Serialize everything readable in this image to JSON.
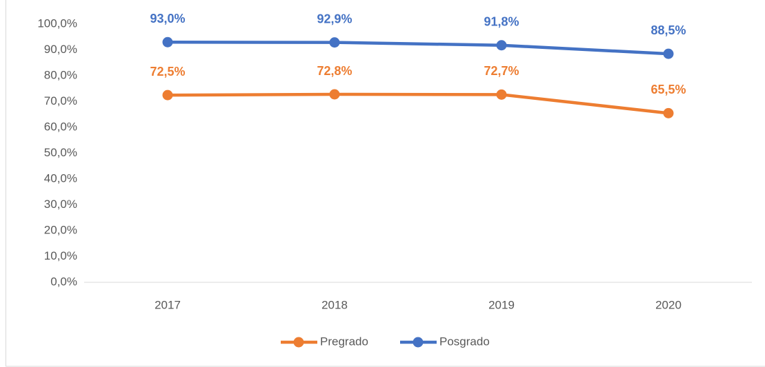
{
  "chart_data": {
    "type": "line",
    "categories": [
      "2017",
      "2018",
      "2019",
      "2020"
    ],
    "series": [
      {
        "name": "Pregrado",
        "color": "#ed7d31",
        "values": [
          72.5,
          72.8,
          72.7,
          65.5
        ],
        "value_labels": [
          "72,5%",
          "72,8%",
          "72,7%",
          "65,5%"
        ]
      },
      {
        "name": "Posgrado",
        "color": "#4472c4",
        "values": [
          93.0,
          92.9,
          91.8,
          88.5
        ],
        "value_labels": [
          "93,0%",
          "92,9%",
          "91,8%",
          "88,5%"
        ]
      }
    ],
    "ylim": [
      0,
      100
    ],
    "yticks": [
      {
        "value": 0,
        "label": "0,0%"
      },
      {
        "value": 10,
        "label": "10,0%"
      },
      {
        "value": 20,
        "label": "20,0%"
      },
      {
        "value": 30,
        "label": "30,0%"
      },
      {
        "value": 40,
        "label": "40,0%"
      },
      {
        "value": 50,
        "label": "50,0%"
      },
      {
        "value": 60,
        "label": "60,0%"
      },
      {
        "value": 70,
        "label": "70,0%"
      },
      {
        "value": 80,
        "label": "80,0%"
      },
      {
        "value": 90,
        "label": "90,0%"
      },
      {
        "value": 100,
        "label": "100,0%"
      }
    ],
    "grid": false,
    "legend": "bottom"
  }
}
